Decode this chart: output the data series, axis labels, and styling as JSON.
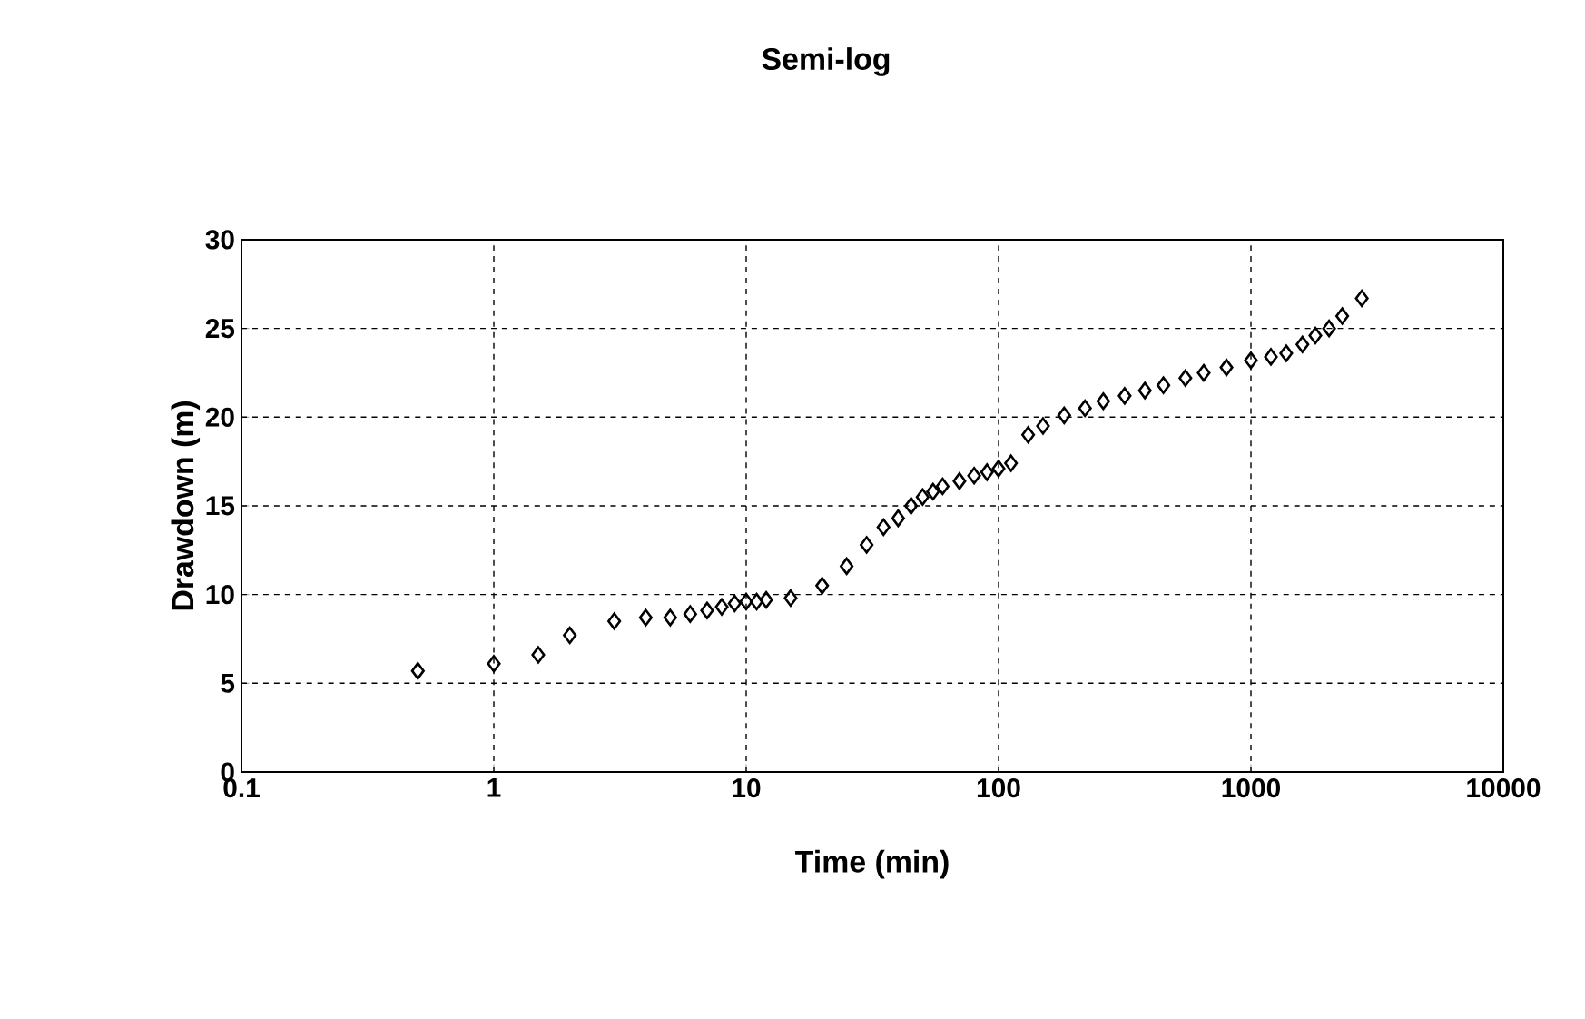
{
  "chart_data": {
    "type": "scatter",
    "title": "Semi-log",
    "xlabel": "Time (min)",
    "ylabel": "Drawdown (m)",
    "log": "x",
    "grid": true,
    "marker": "diamond",
    "xlim": [
      0.1,
      10000
    ],
    "ylim": [
      0,
      30
    ],
    "xticks": [
      0.1,
      1,
      10,
      100,
      1000,
      10000
    ],
    "yticks": [
      0,
      5,
      10,
      15,
      20,
      25,
      30
    ],
    "series": [
      {
        "color": "#000000",
        "x": [
          0.5,
          1,
          1.5,
          2,
          3,
          4,
          5,
          6,
          7,
          8,
          9,
          10,
          11,
          12,
          15,
          20,
          25,
          30,
          35,
          40,
          45,
          50,
          55,
          60,
          70,
          80,
          90,
          100,
          112,
          131,
          150,
          182,
          220,
          260,
          316,
          380,
          450,
          550,
          650,
          800,
          1000,
          1200,
          1380,
          1600,
          1800,
          2040,
          2300,
          2750
        ],
        "values": [
          5.7,
          6.1,
          6.6,
          7.7,
          8.5,
          8.7,
          8.7,
          8.9,
          9.1,
          9.3,
          9.5,
          9.6,
          9.6,
          9.7,
          9.8,
          10.5,
          11.6,
          12.8,
          13.8,
          14.3,
          15.0,
          15.5,
          15.8,
          16.1,
          16.4,
          16.7,
          16.9,
          17.1,
          17.4,
          19.0,
          19.5,
          20.1,
          20.5,
          20.9,
          21.2,
          21.5,
          21.8,
          22.2,
          22.5,
          22.8,
          23.2,
          23.4,
          23.6,
          24.1,
          24.6,
          25.0,
          25.7,
          26.7
        ]
      }
    ]
  }
}
